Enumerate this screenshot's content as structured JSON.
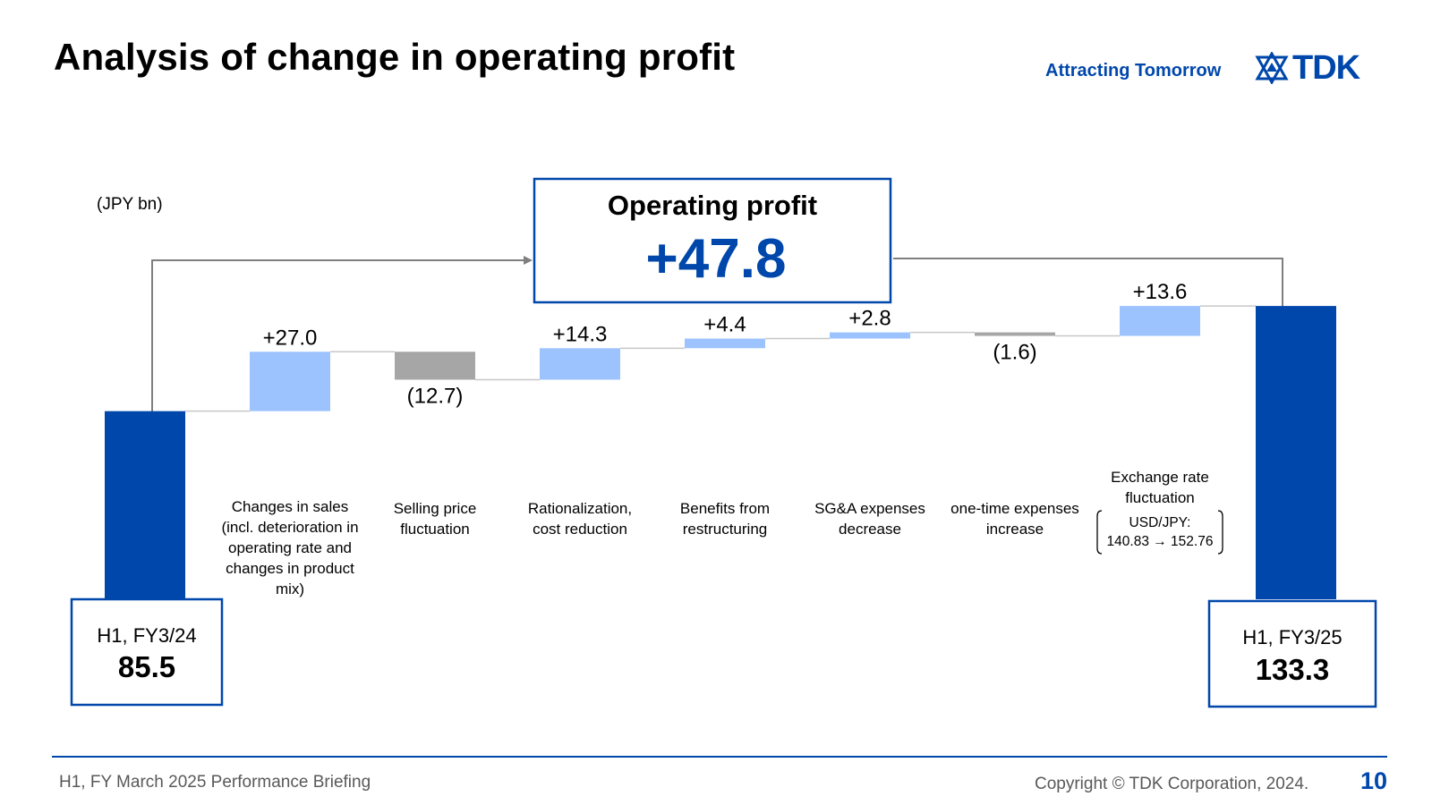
{
  "header": {
    "title": "Analysis of change in operating profit",
    "tagline": "Attracting Tomorrow",
    "logo_text": "TDK"
  },
  "unit_label": "(JPY bn)",
  "summary": {
    "label": "Operating profit",
    "value": "+47.8"
  },
  "start_box": {
    "label": "H1, FY3/24",
    "value": "85.5"
  },
  "end_box": {
    "label": "H1, FY3/25",
    "value": "133.3"
  },
  "colors": {
    "accent": "#0047ab",
    "total_bar": "#0047ab",
    "increase_bar": "#9dc3ff",
    "decrease_bar": "#a6a6a6",
    "connector": "#7f7f7f"
  },
  "chart_data": {
    "type": "bar",
    "subtype": "waterfall",
    "unit": "(JPY bn)",
    "start": {
      "name": "H1, FY3/24",
      "value": 85.5
    },
    "end": {
      "name": "H1, FY3/25",
      "value": 133.3
    },
    "steps": [
      {
        "lines": [
          "Changes in sales",
          "(incl. deterioration in",
          "operating rate and",
          "changes in product",
          "mix)"
        ],
        "value": 27.0,
        "value_label": "+27.0"
      },
      {
        "lines": [
          "Selling price",
          "fluctuation"
        ],
        "value": -12.7,
        "value_label": "(12.7)"
      },
      {
        "lines": [
          "Rationalization,",
          "cost reduction"
        ],
        "value": 14.3,
        "value_label": "+14.3"
      },
      {
        "lines": [
          "Benefits from",
          "restructuring"
        ],
        "value": 4.4,
        "value_label": "+4.4"
      },
      {
        "lines": [
          "SG&A expenses",
          "decrease"
        ],
        "value": 2.8,
        "value_label": "+2.8"
      },
      {
        "lines": [
          "one-time expenses",
          "increase"
        ],
        "value": -1.6,
        "value_label": "(1.6)"
      },
      {
        "lines": [
          "Exchange rate",
          "fluctuation"
        ],
        "value": 13.6,
        "value_label": "+13.6",
        "note_lines": [
          "USD/JPY:",
          "140.83 → 152.76"
        ]
      }
    ],
    "total_change": {
      "label": "Operating profit",
      "value": 47.8
    }
  },
  "footer": {
    "left": "H1, FY March 2025 Performance Briefing",
    "right": "Copyright © TDK Corporation, 2024.",
    "page_number": "10"
  }
}
